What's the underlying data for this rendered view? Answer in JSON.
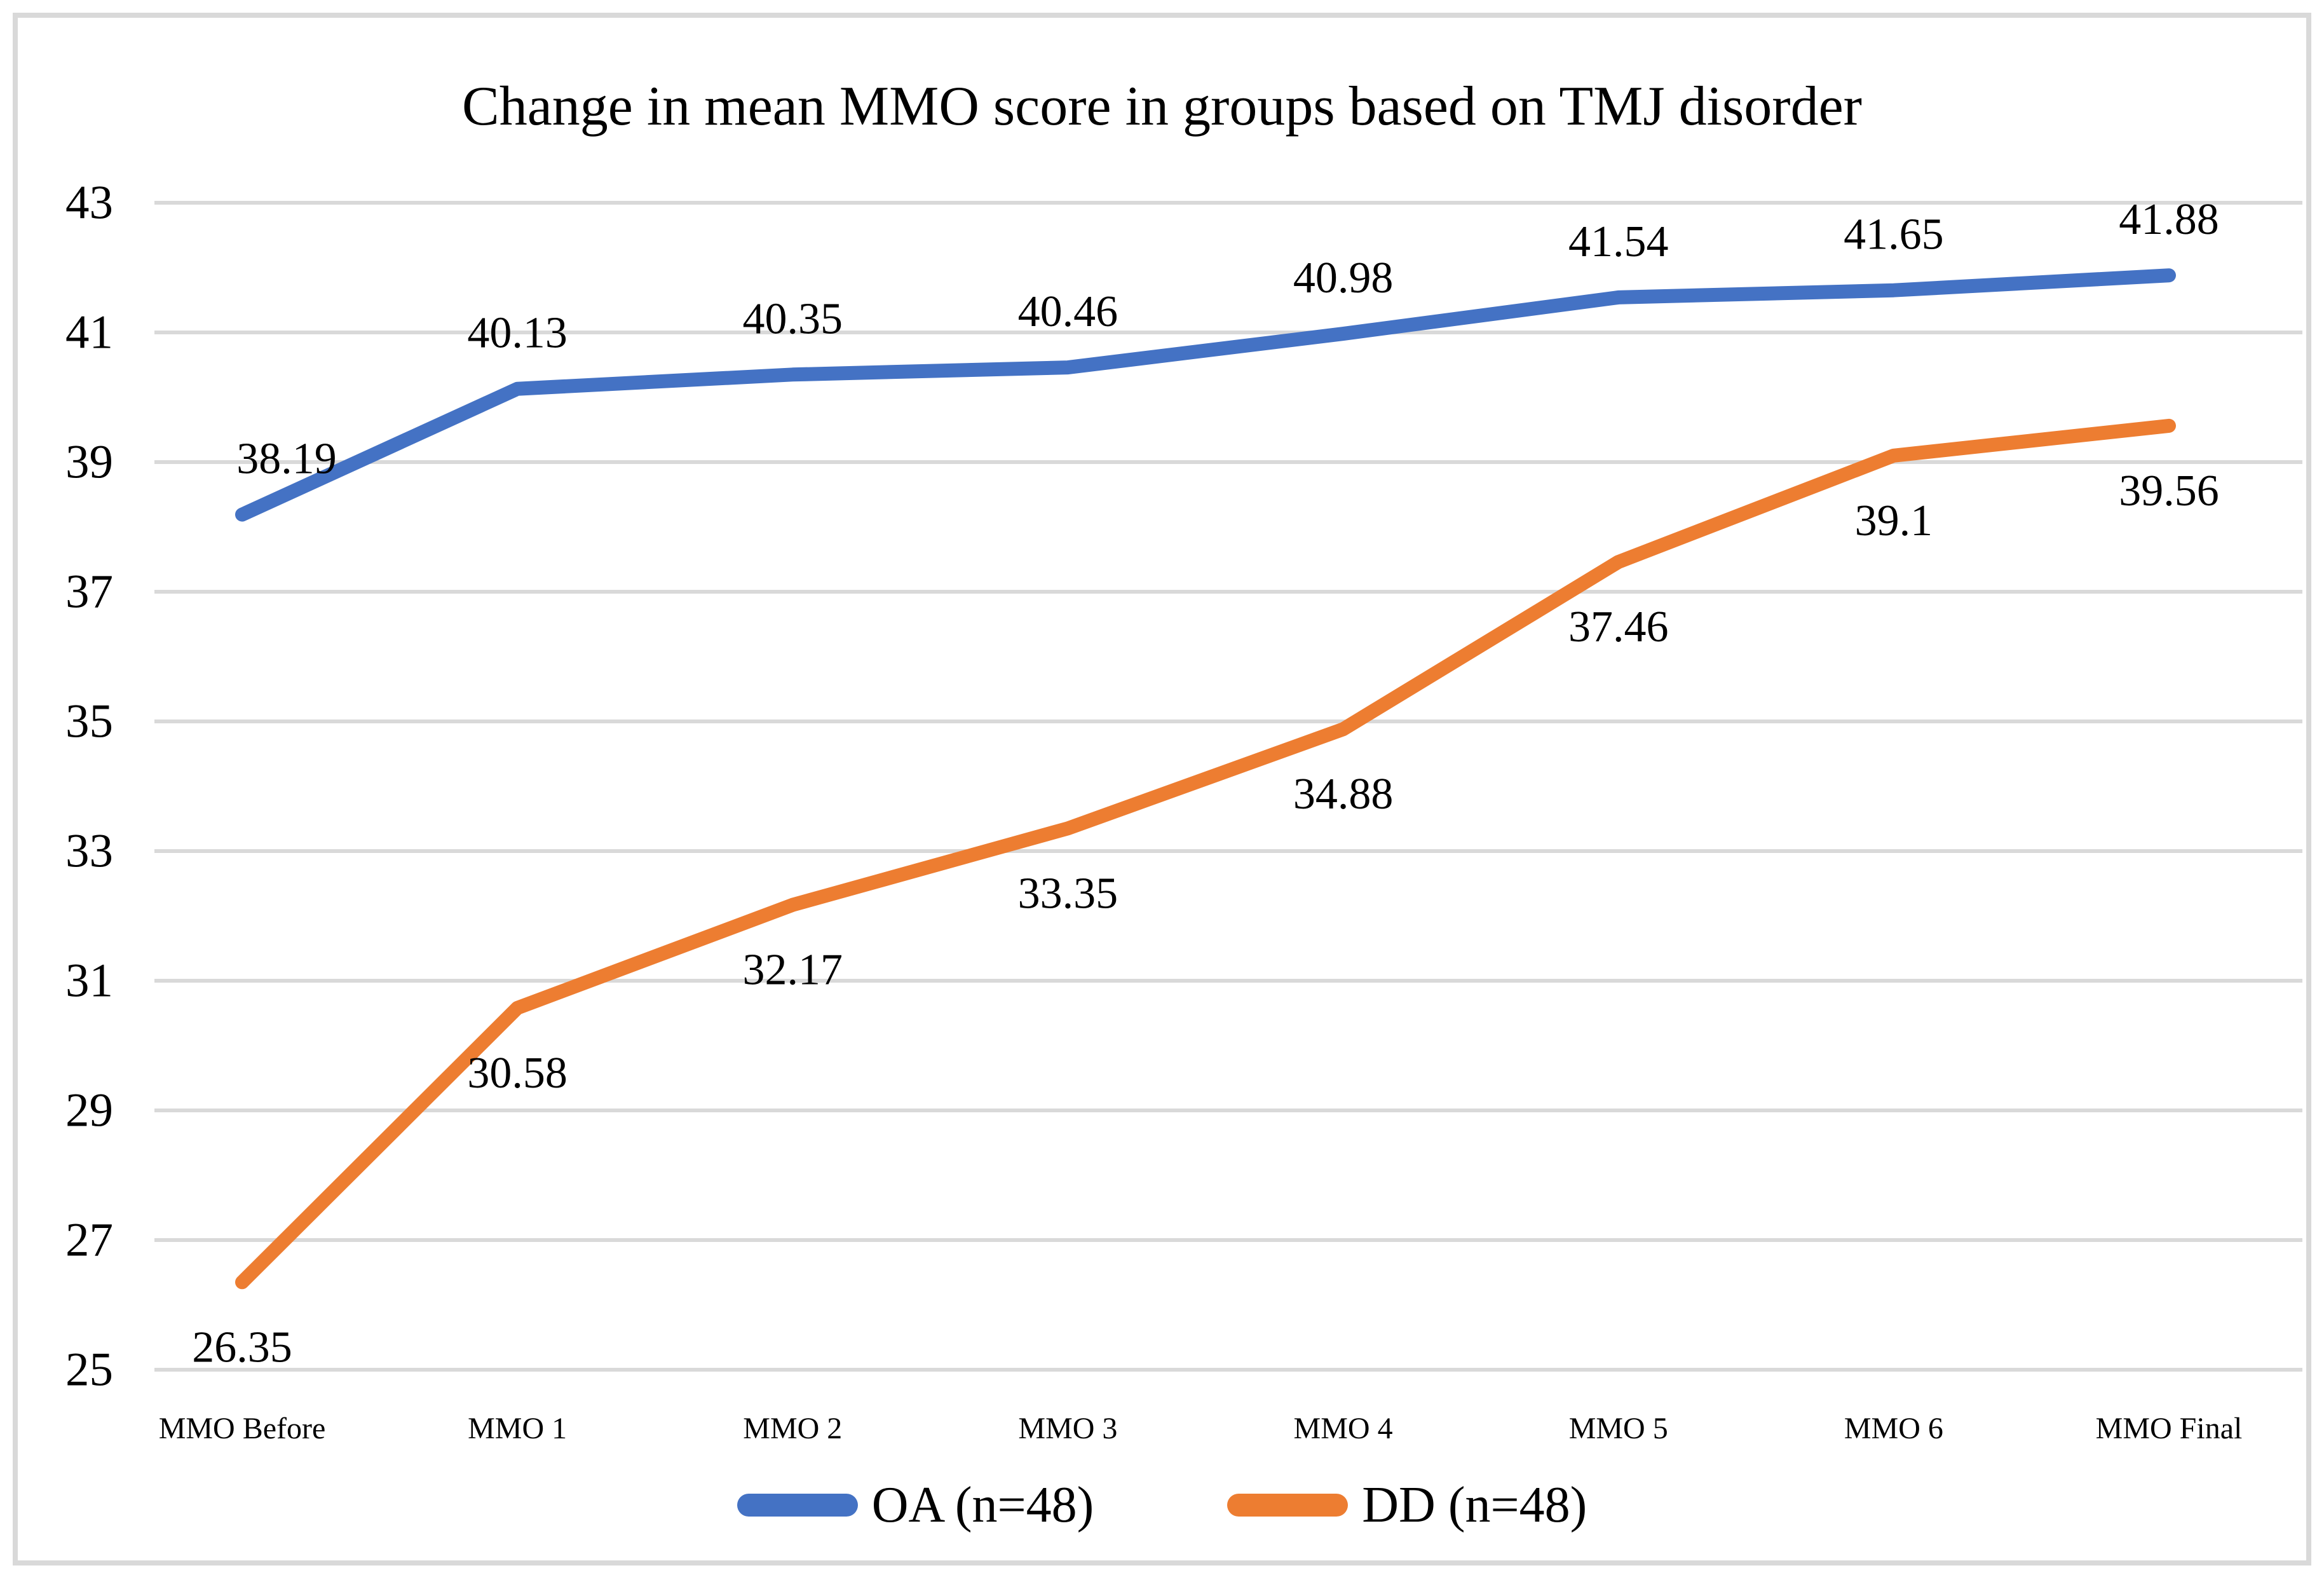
{
  "page": {
    "background_color": "#FFFFFF",
    "frame_border_color": "#D9D9D9"
  },
  "chart_data": {
    "type": "line",
    "title": "Change in mean MMO score in groups based on TMJ disorder",
    "categories": [
      "MMO Before",
      "MMO 1",
      "MMO 2",
      "MMO 3",
      "MMO 4",
      "MMO 5",
      "MMO 6",
      "MMO Final"
    ],
    "series": [
      {
        "name": "OA (n=48)",
        "color": "#4472C4",
        "values": [
          38.19,
          40.13,
          40.35,
          40.46,
          40.98,
          41.54,
          41.65,
          41.88
        ],
        "data_labels": [
          "38.19",
          "40.13",
          "40.35",
          "40.46",
          "40.98",
          "41.54",
          "41.65",
          "41.88"
        ],
        "label_position": "above"
      },
      {
        "name": "DD (n=48)",
        "color": "#ED7D31",
        "values": [
          26.35,
          30.58,
          32.17,
          33.35,
          34.88,
          37.46,
          39.1,
          39.56
        ],
        "data_labels": [
          "26.35",
          "30.58",
          "32.17",
          "33.35",
          "34.88",
          "37.46",
          "39.1",
          "39.56"
        ],
        "label_position": "below"
      }
    ],
    "y_axis": {
      "min": 25,
      "max": 43,
      "step": 2,
      "tick_labels": [
        "43",
        "41",
        "39",
        "37",
        "35",
        "33",
        "31",
        "29",
        "27",
        "25"
      ]
    },
    "xlabel": "",
    "ylabel": "",
    "grid": true,
    "gridline_color": "#D9D9D9",
    "text_color": "#000000",
    "legend_position": "bottom"
  }
}
